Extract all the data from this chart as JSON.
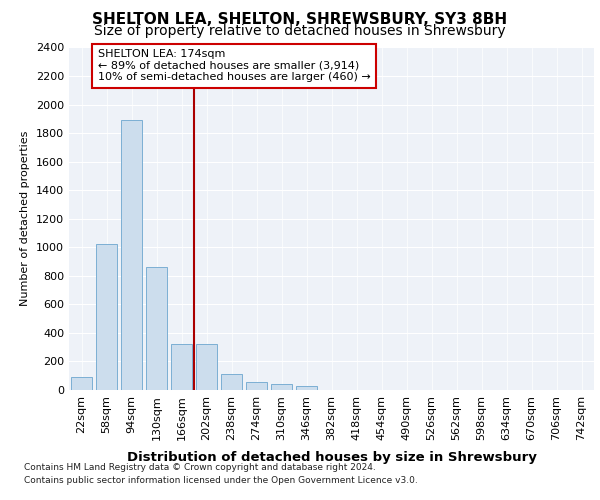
{
  "title1": "SHELTON LEA, SHELTON, SHREWSBURY, SY3 8BH",
  "title2": "Size of property relative to detached houses in Shrewsbury",
  "xlabel": "Distribution of detached houses by size in Shrewsbury",
  "ylabel": "Number of detached properties",
  "categories": [
    "22sqm",
    "58sqm",
    "94sqm",
    "130sqm",
    "166sqm",
    "202sqm",
    "238sqm",
    "274sqm",
    "310sqm",
    "346sqm",
    "382sqm",
    "418sqm",
    "454sqm",
    "490sqm",
    "526sqm",
    "562sqm",
    "598sqm",
    "634sqm",
    "670sqm",
    "706sqm",
    "742sqm"
  ],
  "values": [
    90,
    1025,
    1890,
    860,
    320,
    320,
    115,
    55,
    40,
    30,
    0,
    0,
    0,
    0,
    0,
    0,
    0,
    0,
    0,
    0,
    0
  ],
  "bar_color": "#ccdded",
  "bar_edge_color": "#7bafd4",
  "vline_color": "#aa0000",
  "annotation_line1": "SHELTON LEA: 174sqm",
  "annotation_line2": "← 89% of detached houses are smaller (3,914)",
  "annotation_line3": "10% of semi-detached houses are larger (460) →",
  "annotation_box_color": "white",
  "annotation_box_edge_color": "#cc0000",
  "ylim": [
    0,
    2400
  ],
  "yticks": [
    0,
    200,
    400,
    600,
    800,
    1000,
    1200,
    1400,
    1600,
    1800,
    2000,
    2200,
    2400
  ],
  "footer1": "Contains HM Land Registry data © Crown copyright and database right 2024.",
  "footer2": "Contains public sector information licensed under the Open Government Licence v3.0.",
  "bg_color": "#eef2f8",
  "grid_color": "white",
  "title1_fontsize": 11,
  "title2_fontsize": 10,
  "xlabel_fontsize": 9.5,
  "ylabel_fontsize": 8,
  "tick_fontsize": 8,
  "footer_fontsize": 6.5
}
